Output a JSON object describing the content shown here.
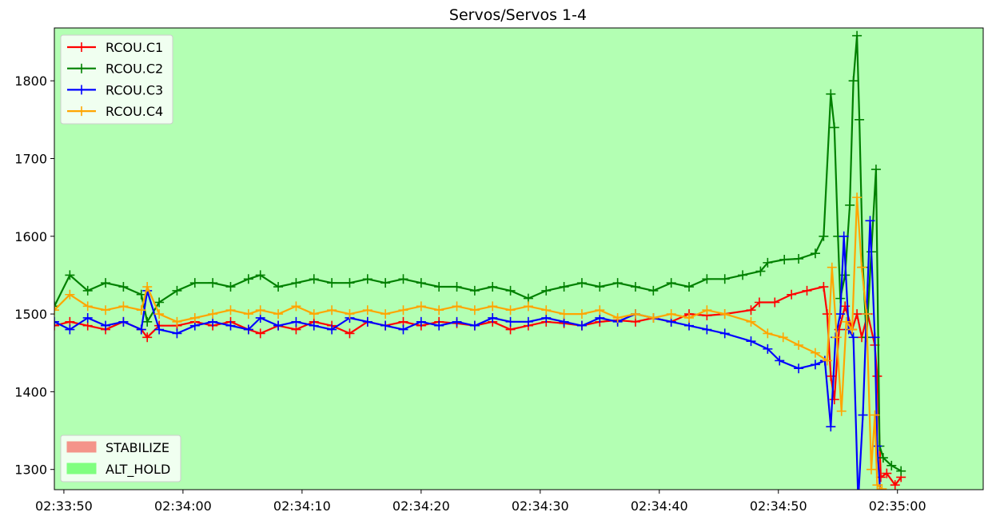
{
  "chart_data": {
    "type": "line",
    "title": "Servos/Servos 1-4",
    "xlabel": "",
    "ylabel": "",
    "xlim": [
      "02:33:49.2",
      "02:35:07.2"
    ],
    "ylim": [
      1274,
      1868
    ],
    "xticks": [
      "02:33:50",
      "02:34:00",
      "02:34:10",
      "02:34:20",
      "02:34:30",
      "02:34:40",
      "02:34:50",
      "02:35:00"
    ],
    "yticks": [
      1300,
      1400,
      1500,
      1600,
      1700,
      1800
    ],
    "grid": false,
    "background_mode": {
      "name": "ALT_HOLD",
      "color": "#b3ffb3"
    },
    "marker": "+",
    "legend": {
      "placement": "upper-left",
      "entries": [
        "RCOU.C1",
        "RCOU.C2",
        "RCOU.C3",
        "RCOU.C4"
      ]
    },
    "mode_legend": {
      "placement": "lower-left",
      "entries": [
        {
          "name": "STABILIZE",
          "color": "#f4948a"
        },
        {
          "name": "ALT_HOLD",
          "color": "#80ff80"
        }
      ]
    },
    "series": [
      {
        "name": "RCOU.C1",
        "color": "#ff0000",
        "x": [
          "02:33:49.2",
          "02:33:50.5",
          "02:33:52",
          "02:33:53.5",
          "02:33:55",
          "02:33:56.5",
          "02:33:57",
          "02:33:58",
          "02:33:59.5",
          "02:34:01",
          "02:34:02.5",
          "02:34:04",
          "02:34:05.5",
          "02:34:06.5",
          "02:34:08",
          "02:34:09.5",
          "02:34:11",
          "02:34:12.5",
          "02:34:14",
          "02:34:15.5",
          "02:34:17",
          "02:34:18.5",
          "02:34:20",
          "02:34:21.5",
          "02:34:23",
          "02:34:24.5",
          "02:34:26",
          "02:34:27.5",
          "02:34:29",
          "02:34:30.5",
          "02:34:32",
          "02:34:33.5",
          "02:34:35",
          "02:34:36.5",
          "02:34:38",
          "02:34:39.5",
          "02:34:41",
          "02:34:42.5",
          "02:34:44",
          "02:34:45.5",
          "02:34:47.7",
          "02:34:48.4",
          "02:34:49.7",
          "02:34:51.1",
          "02:34:52.4",
          "02:34:53.8",
          "02:34:54.1",
          "02:34:54.4",
          "02:34:54.7",
          "02:34:55.1",
          "02:34:55.6",
          "02:34:56.2",
          "02:34:56.6",
          "02:34:57.0",
          "02:34:57.5",
          "02:34:58.1",
          "02:34:58.3",
          "02:34:58.6",
          "02:34:59.1",
          "02:34:59.8",
          "02:35:00.3"
        ],
        "y": [
          1485,
          1490,
          1485,
          1480,
          1490,
          1480,
          1470,
          1485,
          1485,
          1490,
          1485,
          1490,
          1480,
          1475,
          1485,
          1480,
          1490,
          1485,
          1475,
          1490,
          1485,
          1490,
          1485,
          1490,
          1488,
          1485,
          1490,
          1480,
          1485,
          1490,
          1488,
          1485,
          1490,
          1492,
          1490,
          1495,
          1490,
          1500,
          1498,
          1500,
          1505,
          1515,
          1515,
          1525,
          1530,
          1535,
          1500,
          1420,
          1390,
          1480,
          1510,
          1480,
          1500,
          1470,
          1500,
          1460,
          1420,
          1290,
          1295,
          1280,
          1290
        ]
      },
      {
        "name": "RCOU.C2",
        "color": "#008000",
        "x": [
          "02:33:49.2",
          "02:33:50.5",
          "02:33:52",
          "02:33:53.5",
          "02:33:55",
          "02:33:56.5",
          "02:33:57",
          "02:33:58",
          "02:33:59.5",
          "02:34:01",
          "02:34:02.5",
          "02:34:04",
          "02:34:05.5",
          "02:34:06.5",
          "02:34:08",
          "02:34:09.5",
          "02:34:11",
          "02:34:12.5",
          "02:34:14",
          "02:34:15.5",
          "02:34:17",
          "02:34:18.5",
          "02:34:20",
          "02:34:21.5",
          "02:34:23",
          "02:34:24.5",
          "02:34:26",
          "02:34:27.5",
          "02:34:29",
          "02:34:30.5",
          "02:34:32",
          "02:34:33.5",
          "02:34:35",
          "02:34:36.5",
          "02:34:38",
          "02:34:39.5",
          "02:34:41",
          "02:34:42.5",
          "02:34:44",
          "02:34:45.5",
          "02:34:47",
          "02:34:48.5",
          "02:34:49.1",
          "02:34:50.5",
          "02:34:51.7",
          "02:34:53.1",
          "02:34:53.8",
          "02:34:54.4",
          "02:34:54.7",
          "02:34:55.0",
          "02:34:55.2",
          "02:34:55.6",
          "02:34:56.0",
          "02:34:56.3",
          "02:34:56.6",
          "02:34:56.8",
          "02:34:57.1",
          "02:34:57.4",
          "02:34:57.8",
          "02:34:58.2",
          "02:34:58.5",
          "02:34:58.8",
          "02:34:59.5",
          "02:35:00.3"
        ],
        "y": [
          1510,
          1550,
          1530,
          1540,
          1535,
          1525,
          1490,
          1515,
          1530,
          1540,
          1540,
          1535,
          1545,
          1550,
          1535,
          1540,
          1545,
          1540,
          1540,
          1545,
          1540,
          1545,
          1540,
          1535,
          1535,
          1530,
          1535,
          1530,
          1520,
          1530,
          1535,
          1540,
          1535,
          1540,
          1535,
          1530,
          1540,
          1535,
          1545,
          1545,
          1550,
          1555,
          1566,
          1570,
          1571,
          1578,
          1600,
          1783,
          1740,
          1600,
          1520,
          1550,
          1640,
          1800,
          1858,
          1750,
          1560,
          1470,
          1580,
          1686,
          1330,
          1315,
          1305,
          1298
        ]
      },
      {
        "name": "RCOU.C3",
        "color": "#0000ff",
        "x": [
          "02:33:49.2",
          "02:33:50.5",
          "02:33:52",
          "02:33:53.5",
          "02:33:55",
          "02:33:56.5",
          "02:33:57",
          "02:33:58",
          "02:33:59.5",
          "02:34:01",
          "02:34:02.5",
          "02:34:04",
          "02:34:05.5",
          "02:34:06.5",
          "02:34:08",
          "02:34:09.5",
          "02:34:11",
          "02:34:12.5",
          "02:34:14",
          "02:34:15.5",
          "02:34:17",
          "02:34:18.5",
          "02:34:20",
          "02:34:21.5",
          "02:34:23",
          "02:34:24.5",
          "02:34:26",
          "02:34:27.5",
          "02:34:29",
          "02:34:30.5",
          "02:34:32",
          "02:34:33.5",
          "02:34:35",
          "02:34:36.5",
          "02:34:38",
          "02:34:39.5",
          "02:34:41",
          "02:34:42.5",
          "02:34:44",
          "02:34:45.5",
          "02:34:47.7",
          "02:34:49.1",
          "02:34:50.1",
          "02:34:51.7",
          "02:34:53.1",
          "02:34:53.9",
          "02:34:54.4",
          "02:34:54.8",
          "02:34:55.2",
          "02:34:55.5",
          "02:34:55.9",
          "02:34:56.3",
          "02:34:56.7",
          "02:34:57.1",
          "02:34:57.4",
          "02:34:57.7",
          "02:34:58.1",
          "02:34:58.3",
          "02:34:58.6"
        ],
        "y": [
          1490,
          1480,
          1495,
          1485,
          1490,
          1480,
          1530,
          1480,
          1475,
          1485,
          1490,
          1485,
          1480,
          1495,
          1485,
          1490,
          1485,
          1480,
          1495,
          1490,
          1485,
          1480,
          1490,
          1485,
          1490,
          1485,
          1495,
          1490,
          1490,
          1495,
          1490,
          1485,
          1495,
          1490,
          1500,
          1495,
          1490,
          1485,
          1480,
          1475,
          1465,
          1455,
          1440,
          1430,
          1435,
          1440,
          1355,
          1470,
          1500,
          1600,
          1480,
          1470,
          1260,
          1370,
          1500,
          1620,
          1470,
          1330,
          1260
        ]
      },
      {
        "name": "RCOU.C4",
        "color": "#ffa500",
        "x": [
          "02:33:49.2",
          "02:33:50.5",
          "02:33:52",
          "02:33:53.5",
          "02:33:55",
          "02:33:56.5",
          "02:33:57",
          "02:33:58",
          "02:33:59.5",
          "02:34:01",
          "02:34:02.5",
          "02:34:04",
          "02:34:05.5",
          "02:34:06.5",
          "02:34:08",
          "02:34:09.5",
          "02:34:11",
          "02:34:12.5",
          "02:34:14",
          "02:34:15.5",
          "02:34:17",
          "02:34:18.5",
          "02:34:20",
          "02:34:21.5",
          "02:34:23",
          "02:34:24.5",
          "02:34:26",
          "02:34:27.5",
          "02:34:29",
          "02:34:30.5",
          "02:34:32",
          "02:34:33.5",
          "02:34:35",
          "02:34:36.5",
          "02:34:38",
          "02:34:39.5",
          "02:34:41",
          "02:34:42.5",
          "02:34:44",
          "02:34:45.5",
          "02:34:47.7",
          "02:34:49.1",
          "02:34:50.4",
          "02:34:51.7",
          "02:34:53.1",
          "02:34:54.1",
          "02:34:54.5",
          "02:34:54.9",
          "02:34:55.3",
          "02:34:55.7",
          "02:34:56.2",
          "02:34:56.6",
          "02:34:57.0",
          "02:34:57.4",
          "02:34:57.8",
          "02:34:58.1",
          "02:34:58.3",
          "02:34:58.7"
        ],
        "y": [
          1505,
          1525,
          1510,
          1505,
          1510,
          1505,
          1535,
          1500,
          1490,
          1495,
          1500,
          1505,
          1500,
          1505,
          1500,
          1510,
          1500,
          1505,
          1500,
          1505,
          1500,
          1505,
          1510,
          1505,
          1510,
          1505,
          1510,
          1505,
          1510,
          1505,
          1500,
          1500,
          1505,
          1495,
          1500,
          1495,
          1500,
          1495,
          1505,
          1500,
          1490,
          1475,
          1470,
          1460,
          1450,
          1440,
          1560,
          1470,
          1375,
          1490,
          1480,
          1650,
          1560,
          1500,
          1300,
          1370,
          1280,
          1275
        ]
      }
    ]
  }
}
